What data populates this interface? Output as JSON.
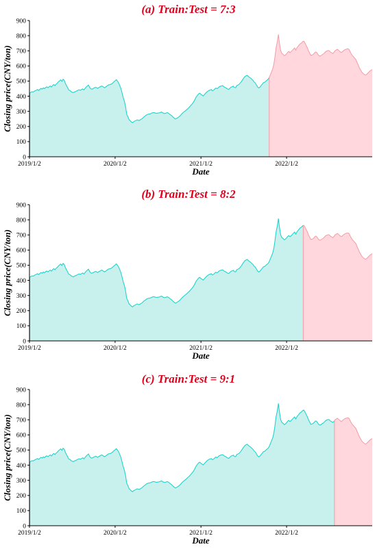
{
  "colors": {
    "train_fill": "#c8f1ee",
    "train_line": "#1fd3cc",
    "test_fill": "#ffd7dd",
    "test_line": "#f59aa5",
    "title": "#e0001b"
  },
  "series_y": [
    418,
    425,
    430,
    428,
    432,
    437,
    440,
    444,
    438,
    446,
    452,
    447,
    455,
    450,
    458,
    462,
    456,
    463,
    468,
    461,
    471,
    477,
    470,
    480,
    486,
    495,
    502,
    508,
    498,
    512,
    505,
    485,
    470,
    455,
    440,
    438,
    430,
    426,
    424,
    429,
    431,
    436,
    440,
    443,
    439,
    445,
    448,
    442,
    452,
    460,
    468,
    474,
    458,
    449,
    447,
    451,
    455,
    459,
    456,
    452,
    458,
    462,
    467,
    466,
    460,
    456,
    462,
    468,
    474,
    476,
    478,
    482,
    488,
    496,
    502,
    509,
    500,
    488,
    470,
    450,
    420,
    390,
    365,
    330,
    280,
    265,
    245,
    238,
    230,
    225,
    232,
    236,
    240,
    244,
    241,
    240,
    246,
    250,
    257,
    264,
    270,
    276,
    280,
    282,
    283,
    286,
    290,
    292,
    291,
    288,
    287,
    289,
    290,
    293,
    296,
    291,
    287,
    286,
    289,
    292,
    288,
    281,
    276,
    270,
    262,
    255,
    250,
    253,
    258,
    263,
    270,
    278,
    287,
    294,
    300,
    306,
    313,
    320,
    327,
    336,
    345,
    354,
    365,
    380,
    395,
    405,
    415,
    420,
    413,
    408,
    402,
    410,
    419,
    427,
    433,
    438,
    441,
    444,
    436,
    440,
    448,
    454,
    450,
    456,
    463,
    466,
    468,
    470,
    462,
    458,
    454,
    448,
    445,
    452,
    460,
    463,
    466,
    458,
    456,
    470,
    474,
    478,
    487,
    496,
    508,
    520,
    529,
    535,
    538,
    531,
    525,
    520,
    512,
    505,
    494,
    488,
    475,
    462,
    455,
    460,
    470,
    479,
    489,
    492,
    498,
    505,
    511,
    523,
    541,
    560,
    579,
    610,
    660,
    721,
    758,
    808,
    745,
    700,
    682,
    678,
    668,
    672,
    680,
    690,
    696,
    688,
    695,
    703,
    712,
    719,
    705,
    720,
    730,
    740,
    748,
    752,
    761,
    764,
    751,
    735,
    720,
    700,
    685,
    670,
    672,
    676,
    684,
    692,
    690,
    678,
    668,
    665,
    670,
    675,
    680,
    688,
    696,
    699,
    702,
    700,
    691,
    688,
    682,
    690,
    701,
    706,
    710,
    703,
    696,
    690,
    692,
    700,
    706,
    709,
    712,
    714,
    709,
    693,
    679,
    668,
    660,
    650,
    642,
    622,
    605,
    586,
    574,
    560,
    552,
    545,
    540,
    543,
    550,
    558,
    566,
    572,
    576
  ],
  "charts": [
    {
      "title": "(a) Train:Test = 7:3",
      "xlabel": "Date",
      "ylabel": "Closing price(CNY/ton)",
      "chart_data": {
        "type": "area",
        "title": "(a) Train:Test = 7:3",
        "xlabel": "Date",
        "ylabel": "Closing price(CNY/ton)",
        "x_ticks": [
          "2019/1/2",
          "2020/1/2",
          "2021/1/2",
          "2022/1/2"
        ],
        "y_ticks": [
          0,
          100,
          200,
          300,
          400,
          500,
          600,
          700,
          800,
          900
        ],
        "ylim": [
          0,
          900
        ],
        "x_range": [
          "2019/1/2",
          "2023/1/2"
        ],
        "split_date": "2021/10/20",
        "series": [
          {
            "role": "train",
            "color": "#1fd3cc"
          },
          {
            "role": "test",
            "color": "#f59aa5"
          }
        ]
      }
    },
    {
      "title": "(b) Train:Test = 8:2",
      "xlabel": "Date",
      "ylabel": "Closing price(CNY/ton)",
      "chart_data": {
        "type": "area",
        "title": "(b) Train:Test = 8:2",
        "xlabel": "Date",
        "ylabel": "Closing price(CNY/ton)",
        "x_ticks": [
          "2019/1/2",
          "2020/1/2",
          "2021/1/2",
          "2022/1/2"
        ],
        "y_ticks": [
          0,
          100,
          200,
          300,
          400,
          500,
          600,
          700,
          800,
          900
        ],
        "ylim": [
          0,
          900
        ],
        "x_range": [
          "2019/1/2",
          "2023/1/2"
        ],
        "split_date": "2022/3/14",
        "series": [
          {
            "role": "train",
            "color": "#1fd3cc"
          },
          {
            "role": "test",
            "color": "#f59aa5"
          }
        ]
      }
    },
    {
      "title": "(c) Train:Test = 9:1",
      "xlabel": "Date",
      "ylabel": "Closing price(CNY/ton)",
      "chart_data": {
        "type": "area",
        "title": "(c) Train:Test = 9:1",
        "xlabel": "Date",
        "ylabel": "Closing price(CNY/ton)",
        "x_ticks": [
          "2019/1/2",
          "2020/1/2",
          "2021/1/2",
          "2022/1/2"
        ],
        "y_ticks": [
          0,
          100,
          200,
          300,
          400,
          500,
          600,
          700,
          800,
          900
        ],
        "ylim": [
          0,
          900
        ],
        "x_range": [
          "2019/1/2",
          "2023/1/2"
        ],
        "split_date": "2022/7/25",
        "series": [
          {
            "role": "train",
            "color": "#1fd3cc"
          },
          {
            "role": "test",
            "color": "#f59aa5"
          }
        ]
      }
    }
  ]
}
